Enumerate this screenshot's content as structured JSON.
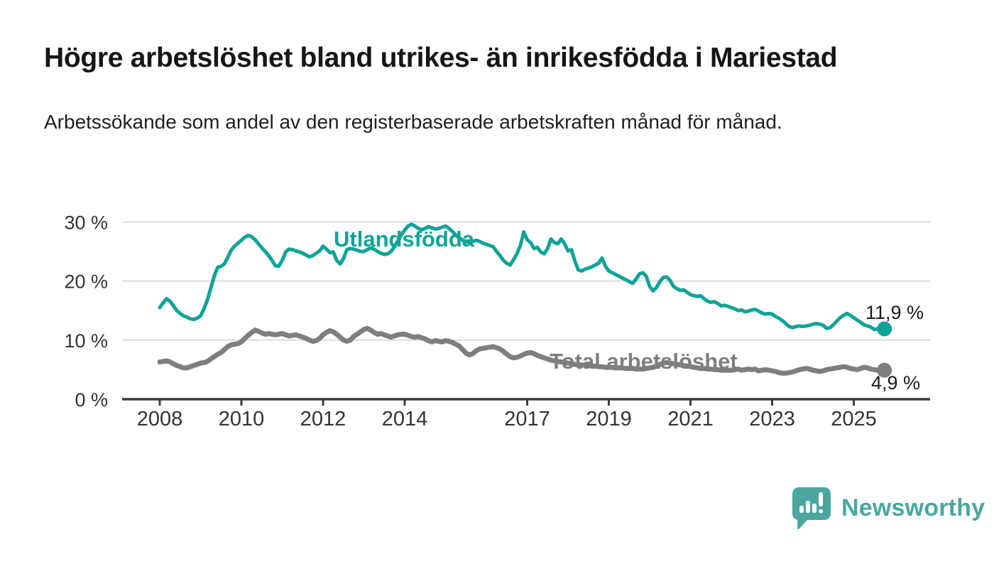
{
  "chart_data": {
    "type": "line",
    "title": "Högre arbetslöshet bland utrikes- än inrikesfödda i Mariestad",
    "subtitle": "Arbetssökande som andel av den registerbaserade arbetskraften månad för månad.",
    "x_start": "2008-01",
    "x_interval": "month",
    "x_end": "2025-10",
    "x_tick_years": [
      2008,
      2010,
      2012,
      2014,
      2017,
      2019,
      2021,
      2023,
      2025
    ],
    "x_tick_labels": [
      "2008",
      "2010",
      "2012",
      "2014",
      "2017",
      "2019",
      "2021",
      "2023",
      "2025"
    ],
    "y_tick_values": [
      0,
      10,
      20,
      30
    ],
    "y_tick_labels": [
      "0 %",
      "10 %",
      "20 %",
      "30 %"
    ],
    "ylim": [
      0,
      31.5
    ],
    "grid": "horizontal",
    "legend": "inline-labels",
    "series": [
      {
        "name": "Utlandsfödda",
        "color": "#10a398",
        "end_value": 11.9,
        "end_label": "11,9 %",
        "values": [
          15.5,
          16.3,
          17.0,
          16.6,
          15.8,
          15.0,
          14.5,
          14.1,
          13.9,
          13.6,
          13.5,
          13.7,
          14.1,
          15.3,
          16.8,
          18.8,
          20.8,
          22.3,
          22.5,
          22.9,
          24.0,
          25.2,
          25.9,
          26.4,
          26.9,
          27.4,
          27.7,
          27.5,
          27.0,
          26.3,
          25.6,
          25.0,
          24.3,
          23.5,
          22.6,
          22.5,
          23.5,
          24.9,
          25.4,
          25.3,
          25.1,
          24.9,
          24.7,
          24.4,
          24.1,
          24.3,
          24.7,
          25.1,
          25.9,
          25.4,
          24.8,
          24.9,
          23.5,
          22.9,
          23.8,
          25.3,
          25.5,
          25.4,
          25.2,
          25.0,
          25.0,
          25.3,
          25.6,
          25.4,
          25.0,
          24.7,
          24.5,
          24.6,
          25.0,
          25.8,
          26.8,
          27.8,
          28.6,
          29.3,
          29.6,
          29.3,
          28.9,
          28.7,
          28.9,
          29.2,
          29.0,
          28.8,
          28.9,
          29.1,
          29.3,
          28.9,
          28.4,
          27.8,
          27.3,
          26.9,
          26.7,
          26.5,
          26.7,
          26.9,
          26.7,
          26.4,
          26.2,
          26.0,
          25.8,
          25.0,
          24.3,
          23.5,
          23.0,
          22.7,
          23.6,
          24.6,
          26.0,
          28.3,
          27.0,
          26.5,
          25.5,
          25.7,
          24.9,
          24.6,
          25.5,
          27.1,
          26.5,
          26.3,
          27.1,
          26.3,
          25.1,
          25.3,
          23.4,
          21.9,
          21.7,
          22.0,
          22.2,
          22.4,
          22.7,
          23.0,
          23.9,
          22.5,
          21.7,
          21.4,
          21.1,
          20.8,
          20.5,
          20.2,
          19.9,
          19.6,
          20.3,
          21.2,
          21.4,
          20.8,
          19.1,
          18.3,
          18.9,
          19.9,
          20.6,
          20.7,
          20.1,
          19.1,
          18.7,
          18.4,
          18.5,
          18.1,
          17.7,
          17.5,
          17.4,
          17.5,
          17.0,
          16.6,
          16.4,
          16.5,
          16.2,
          15.8,
          15.9,
          15.7,
          15.5,
          15.3,
          15.0,
          15.1,
          14.8,
          14.9,
          15.1,
          15.2,
          14.9,
          14.6,
          14.4,
          14.5,
          14.4,
          14.0,
          13.7,
          13.3,
          12.8,
          12.3,
          12.1,
          12.3,
          12.4,
          12.3,
          12.4,
          12.5,
          12.7,
          12.8,
          12.7,
          12.5,
          12.0,
          12.1,
          12.6,
          13.2,
          13.8,
          14.2,
          14.5,
          14.2,
          13.8,
          13.4,
          13.0,
          12.6,
          12.4,
          12.2,
          11.8,
          11.9,
          11.6,
          11.9
        ]
      },
      {
        "name": "Total arbetslöshet",
        "color": "#7e7e7e",
        "end_value": 4.9,
        "end_label": "4,9 %",
        "values": [
          6.3,
          6.4,
          6.5,
          6.3,
          6.0,
          5.7,
          5.5,
          5.3,
          5.3,
          5.5,
          5.7,
          5.9,
          6.1,
          6.2,
          6.4,
          6.8,
          7.2,
          7.6,
          7.9,
          8.4,
          8.9,
          9.2,
          9.3,
          9.4,
          9.7,
          10.3,
          10.8,
          11.3,
          11.7,
          11.5,
          11.2,
          11.0,
          11.1,
          11.0,
          10.9,
          11.0,
          11.1,
          10.9,
          10.7,
          10.8,
          10.9,
          10.7,
          10.5,
          10.3,
          10.0,
          9.8,
          9.9,
          10.3,
          10.9,
          11.3,
          11.6,
          11.4,
          11.0,
          10.5,
          10.0,
          9.8,
          10.0,
          10.6,
          11.0,
          11.4,
          11.8,
          12.0,
          11.7,
          11.3,
          11.0,
          11.1,
          10.9,
          10.7,
          10.5,
          10.7,
          10.9,
          11.0,
          11.0,
          10.8,
          10.6,
          10.5,
          10.6,
          10.4,
          10.2,
          9.9,
          9.7,
          9.9,
          9.8,
          9.7,
          9.9,
          9.8,
          9.6,
          9.3,
          9.0,
          8.4,
          7.8,
          7.5,
          7.7,
          8.2,
          8.5,
          8.6,
          8.7,
          8.8,
          8.9,
          8.7,
          8.5,
          8.1,
          7.6,
          7.2,
          7.0,
          7.1,
          7.3,
          7.6,
          7.8,
          7.9,
          7.7,
          7.4,
          7.2,
          7.0,
          6.8,
          6.6,
          6.5,
          6.4,
          6.3,
          6.2,
          6.1,
          6.0,
          5.9,
          5.8,
          5.8,
          5.7,
          5.7,
          5.6,
          5.6,
          5.5,
          5.5,
          5.4,
          5.4,
          5.4,
          5.3,
          5.3,
          5.3,
          5.2,
          5.2,
          5.2,
          5.1,
          5.1,
          5.1,
          5.2,
          5.3,
          5.4,
          5.6,
          5.9,
          6.1,
          6.2,
          6.1,
          6.0,
          5.9,
          5.8,
          5.7,
          5.6,
          5.5,
          5.4,
          5.3,
          5.2,
          5.2,
          5.1,
          5.1,
          5.0,
          5.0,
          4.9,
          4.9,
          4.9,
          4.9,
          5.0,
          5.1,
          4.9,
          5.0,
          5.1,
          5.0,
          5.1,
          4.8,
          4.9,
          5.0,
          4.9,
          4.8,
          4.7,
          4.5,
          4.4,
          4.4,
          4.5,
          4.6,
          4.8,
          5.0,
          5.1,
          5.2,
          5.1,
          4.9,
          4.8,
          4.7,
          4.8,
          5.0,
          5.1,
          5.2,
          5.3,
          5.4,
          5.5,
          5.4,
          5.2,
          5.1,
          5.0,
          5.2,
          5.4,
          5.3,
          5.1,
          5.0,
          4.9,
          5.0,
          4.9
        ]
      }
    ],
    "colors": {
      "grid": "#dbdbdb",
      "axis": "#3c3c3c",
      "tick_label": "#333333"
    }
  },
  "branding": {
    "logo_text": "Newsworthy",
    "logo_color": "#4ba6a0",
    "logo_icon": "speech-bubble-bar-chart-icon"
  }
}
